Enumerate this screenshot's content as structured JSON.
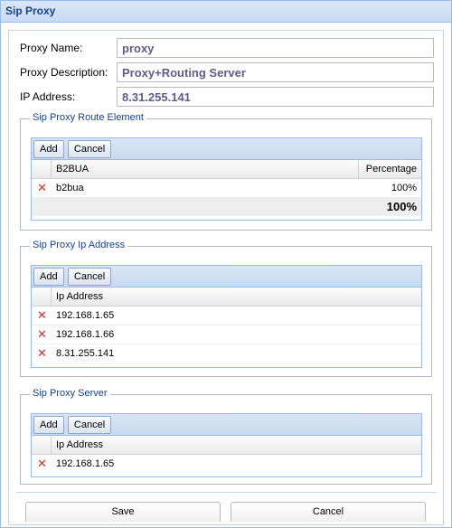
{
  "window": {
    "title": "Sip Proxy"
  },
  "form": {
    "proxy_name": {
      "label": "Proxy Name:",
      "value": "proxy"
    },
    "proxy_description": {
      "label": "Proxy Description:",
      "value": "Proxy+Routing Server"
    },
    "ip_address": {
      "label": "IP Address:",
      "value": "8.31.255.141"
    }
  },
  "route_element": {
    "legend": "Sip Proxy Route Element",
    "add_label": "Add",
    "cancel_label": "Cancel",
    "columns": [
      "B2BUA",
      "Percentage"
    ],
    "rows": [
      {
        "name": "b2bua",
        "percentage": "100%"
      }
    ],
    "total": "100%"
  },
  "ip_addresses": {
    "legend": "Sip Proxy Ip Address",
    "add_label": "Add",
    "cancel_label": "Cancel",
    "columns": [
      "Ip Address"
    ],
    "rows": [
      "192.168.1.65",
      "192.168.1.66",
      "8.31.255.141"
    ]
  },
  "servers": {
    "legend": "Sip Proxy Server",
    "add_label": "Add",
    "cancel_label": "Cancel",
    "columns": [
      "Ip Address"
    ],
    "rows": [
      "192.168.1.65"
    ]
  },
  "footer": {
    "save_label": "Save",
    "cancel_label": "Cancel"
  },
  "icons": {
    "delete": "delete-x-icon"
  },
  "colors": {
    "title_text": "#15428b",
    "delete": "#e12b20",
    "border": "#99bbe8"
  }
}
